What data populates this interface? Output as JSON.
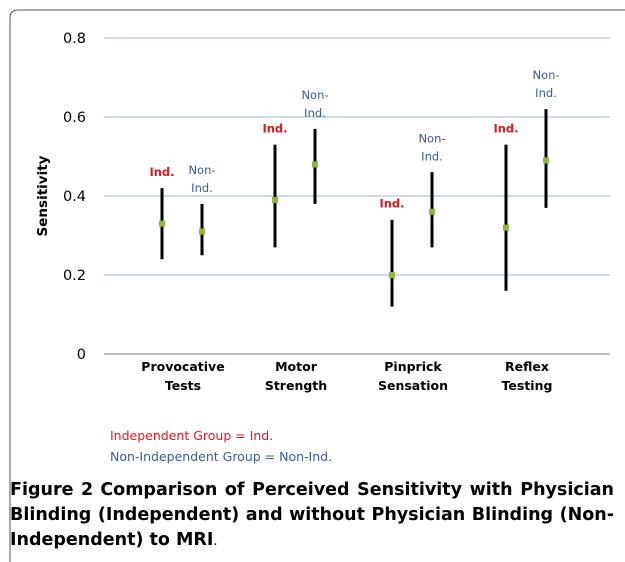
{
  "chart_data": {
    "type": "error-bar",
    "ylabel": "Sensitivity",
    "ylim": [
      0,
      0.8
    ],
    "y_ticks": [
      "0",
      "0.2",
      "0.4",
      "0.6",
      "0.8"
    ],
    "y_tick_values": [
      0,
      0.2,
      0.4,
      0.6,
      0.8
    ],
    "categories": [
      {
        "line1": "Provocative",
        "line2": "Tests"
      },
      {
        "line1": "Motor",
        "line2": "Strength"
      },
      {
        "line1": "Pinprick",
        "line2": "Sensation"
      },
      {
        "line1": "Reflex",
        "line2": "Testing"
      }
    ],
    "series": [
      {
        "name": "Ind.",
        "color": "#e8161b",
        "points": [
          {
            "mean": 0.33,
            "low": 0.24,
            "high": 0.42
          },
          {
            "mean": 0.39,
            "low": 0.27,
            "high": 0.53
          },
          {
            "mean": 0.2,
            "low": 0.12,
            "high": 0.34
          },
          {
            "mean": 0.32,
            "low": 0.16,
            "high": 0.53
          }
        ]
      },
      {
        "name": "Non-Ind.",
        "name_lines": [
          "Non-",
          "Ind."
        ],
        "color": "#3a5a98",
        "points": [
          {
            "mean": 0.31,
            "low": 0.25,
            "high": 0.38
          },
          {
            "mean": 0.48,
            "low": 0.38,
            "high": 0.57
          },
          {
            "mean": 0.36,
            "low": 0.27,
            "high": 0.46
          },
          {
            "mean": 0.49,
            "low": 0.37,
            "high": 0.62
          }
        ]
      }
    ],
    "grid": true,
    "marker_color": "#8ab83a",
    "legend": {
      "ind": "Independent Group = Ind.",
      "nonind": "Non-Independent Group = Non-Ind."
    }
  },
  "caption": {
    "lead": "Figure 2",
    "text": "Comparison of Perceived Sensitivity with Physician Blinding (Independent) and without Physician Blinding (Non-Independent) to MRI",
    "tail": "."
  }
}
